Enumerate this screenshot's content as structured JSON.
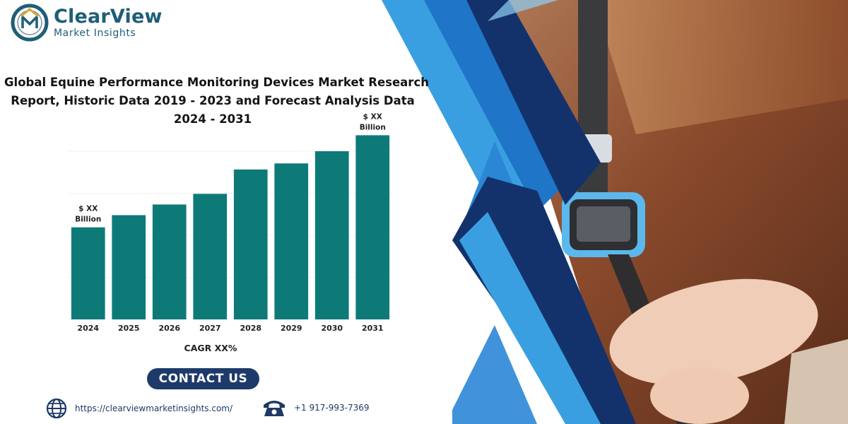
{
  "brand": {
    "name": "ClearView",
    "tagline": "Market Insights"
  },
  "title_lines": [
    "Global Equine Performance Monitoring Devices Market Research",
    "Report, Historic Data 2019 - 2023 and Forecast Analysis Data",
    "2024 - 2031"
  ],
  "chart_data": {
    "type": "bar",
    "categories": [
      "2024",
      "2025",
      "2026",
      "2027",
      "2028",
      "2029",
      "2030",
      "2031"
    ],
    "values": [
      121,
      137,
      151,
      165,
      197,
      205,
      221,
      242
    ],
    "ylim": [
      0,
      260
    ],
    "grid": true,
    "bar_color": "#0d7a78",
    "annotations": [
      {
        "category": "2024",
        "lines": [
          "$ XX",
          "Billion"
        ]
      },
      {
        "category": "2031",
        "lines": [
          "$ XX",
          "Billion"
        ]
      }
    ],
    "note": "CAGR XX%"
  },
  "contact_button": "CONTACT US",
  "footer": {
    "website": "https://clearviewmarketinsights.com/",
    "phone": "+1 917-993-7369"
  },
  "colors": {
    "brand_teal": "#1e5e78",
    "navy": "#13326b",
    "accent_blue": "#3a9fe0",
    "button": "#1d3a6b"
  }
}
